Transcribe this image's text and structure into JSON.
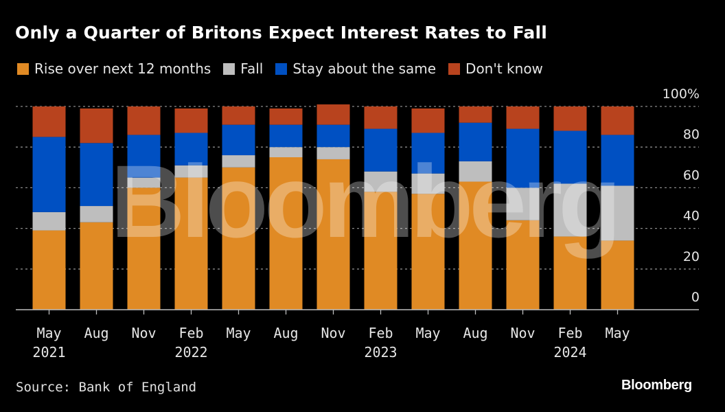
{
  "title": "Only a Quarter of Britons Expect Interest Rates to Fall",
  "source": "Source: Bank of England",
  "brand": "Bloomberg",
  "watermark": "Bloomberg",
  "chart_data": {
    "type": "bar",
    "stacked": true,
    "title": "Only a Quarter of Britons Expect Interest Rates to Fall",
    "xlabel": "",
    "ylabel": "",
    "ylim": [
      0,
      100
    ],
    "y_ticks": [
      0,
      20,
      40,
      60,
      80,
      100
    ],
    "y_tick_labels": [
      "0",
      "20",
      "40",
      "60",
      "80",
      "100%"
    ],
    "y_axis_side": "right",
    "grid": true,
    "legend_position": "top-left",
    "categories": [
      "May 2021",
      "Aug 2021",
      "Nov 2021",
      "Feb 2022",
      "May 2022",
      "Aug 2022",
      "Nov 2022",
      "Feb 2023",
      "May 2023",
      "Aug 2023",
      "Nov 2023",
      "Feb 2024",
      "May 2024"
    ],
    "x_tick_labels": [
      [
        "May",
        "2021"
      ],
      [
        "Aug",
        ""
      ],
      [
        "Nov",
        ""
      ],
      [
        "Feb",
        "2022"
      ],
      [
        "May",
        ""
      ],
      [
        "Aug",
        ""
      ],
      [
        "Nov",
        ""
      ],
      [
        "Feb",
        "2023"
      ],
      [
        "May",
        ""
      ],
      [
        "Aug",
        ""
      ],
      [
        "Nov",
        ""
      ],
      [
        "Feb",
        "2024"
      ],
      [
        "May",
        ""
      ]
    ],
    "series": [
      {
        "name": "Rise over next 12 months",
        "color": "#E08A24",
        "values": [
          39,
          43,
          60,
          65,
          70,
          75,
          74,
          58,
          57,
          63,
          44,
          36,
          34
        ]
      },
      {
        "name": "Fall",
        "color": "#BEBEBE",
        "values": [
          9,
          8,
          5,
          6,
          6,
          5,
          6,
          10,
          10,
          10,
          16,
          26,
          27
        ]
      },
      {
        "name": "Stay about the same",
        "color": "#0050C2",
        "values": [
          37,
          31,
          21,
          16,
          15,
          11,
          11,
          21,
          20,
          19,
          29,
          26,
          25
        ]
      },
      {
        "name": "Don't know",
        "color": "#B8431E",
        "values": [
          15,
          17,
          14,
          12,
          9,
          8,
          10,
          11,
          12,
          8,
          11,
          12,
          14
        ]
      }
    ]
  }
}
